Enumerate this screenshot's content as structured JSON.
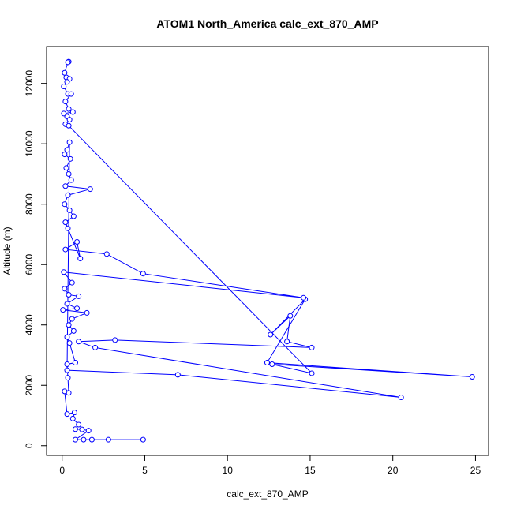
{
  "chart_data": {
    "type": "line",
    "title": "ATOM1 North_America calc_ext_870_AMP",
    "x_label": "calc_ext_870_AMP",
    "y_label": "Altitude (m)",
    "color": "#0000ff",
    "x": [
      0.4,
      0.35,
      0.15,
      0.25,
      0.45,
      0.3,
      0.1,
      0.35,
      0.55,
      0.2,
      0.4,
      0.65,
      0.1,
      0.3,
      0.45,
      0.2,
      0.4,
      15.1,
      12.7,
      24.8,
      12.4,
      14.7,
      12.6,
      13.8,
      13.6,
      15.1,
      3.2,
      1.0,
      2.0,
      20.5,
      7.0,
      0.3,
      0.45,
      0.3,
      0.15,
      0.5,
      0.25,
      0.4,
      0.55,
      0.2,
      1.7,
      0.35,
      0.15,
      0.45,
      0.7,
      0.2,
      0.35,
      1.1,
      0.9,
      0.2,
      2.7,
      4.9,
      14.6,
      0.1,
      0.6,
      0.15,
      0.4,
      1.0,
      0.3,
      0.9,
      0.05,
      1.5,
      0.6,
      0.4,
      0.7,
      0.3,
      0.45,
      0.8,
      0.3,
      0.35,
      0.4,
      0.15,
      0.3,
      0.75,
      0.65,
      1.0,
      0.8,
      1.2,
      1.6,
      0.8,
      1.3,
      1.8,
      2.8,
      4.9
    ],
    "values": [
      12720,
      12700,
      12350,
      12200,
      12150,
      12050,
      11900,
      11650,
      11650,
      11400,
      11150,
      11050,
      11000,
      10900,
      10800,
      10650,
      10600,
      2400,
      2700,
      2280,
      2750,
      4850,
      3680,
      4300,
      3450,
      3250,
      3500,
      3450,
      3250,
      1600,
      2350,
      2500,
      10050,
      9800,
      9650,
      9500,
      9200,
      9000,
      8800,
      8600,
      8500,
      8300,
      8000,
      7800,
      7600,
      7400,
      7200,
      6200,
      6750,
      6500,
      6350,
      5700,
      4900,
      5750,
      5400,
      5200,
      5000,
      4950,
      4700,
      4550,
      4500,
      4400,
      4200,
      4000,
      3800,
      3600,
      3400,
      2750,
      2700,
      2250,
      1750,
      1800,
      1050,
      1100,
      900,
      700,
      550,
      540,
      500,
      200,
      200,
      200,
      200,
      200
    ],
    "xlim": [
      -0.94,
      25.79
    ],
    "ylim": [
      -320,
      13220
    ],
    "xticks": [
      0,
      5,
      10,
      15,
      20,
      25
    ],
    "yticks": [
      0,
      2000,
      4000,
      6000,
      8000,
      10000,
      12000
    ]
  }
}
